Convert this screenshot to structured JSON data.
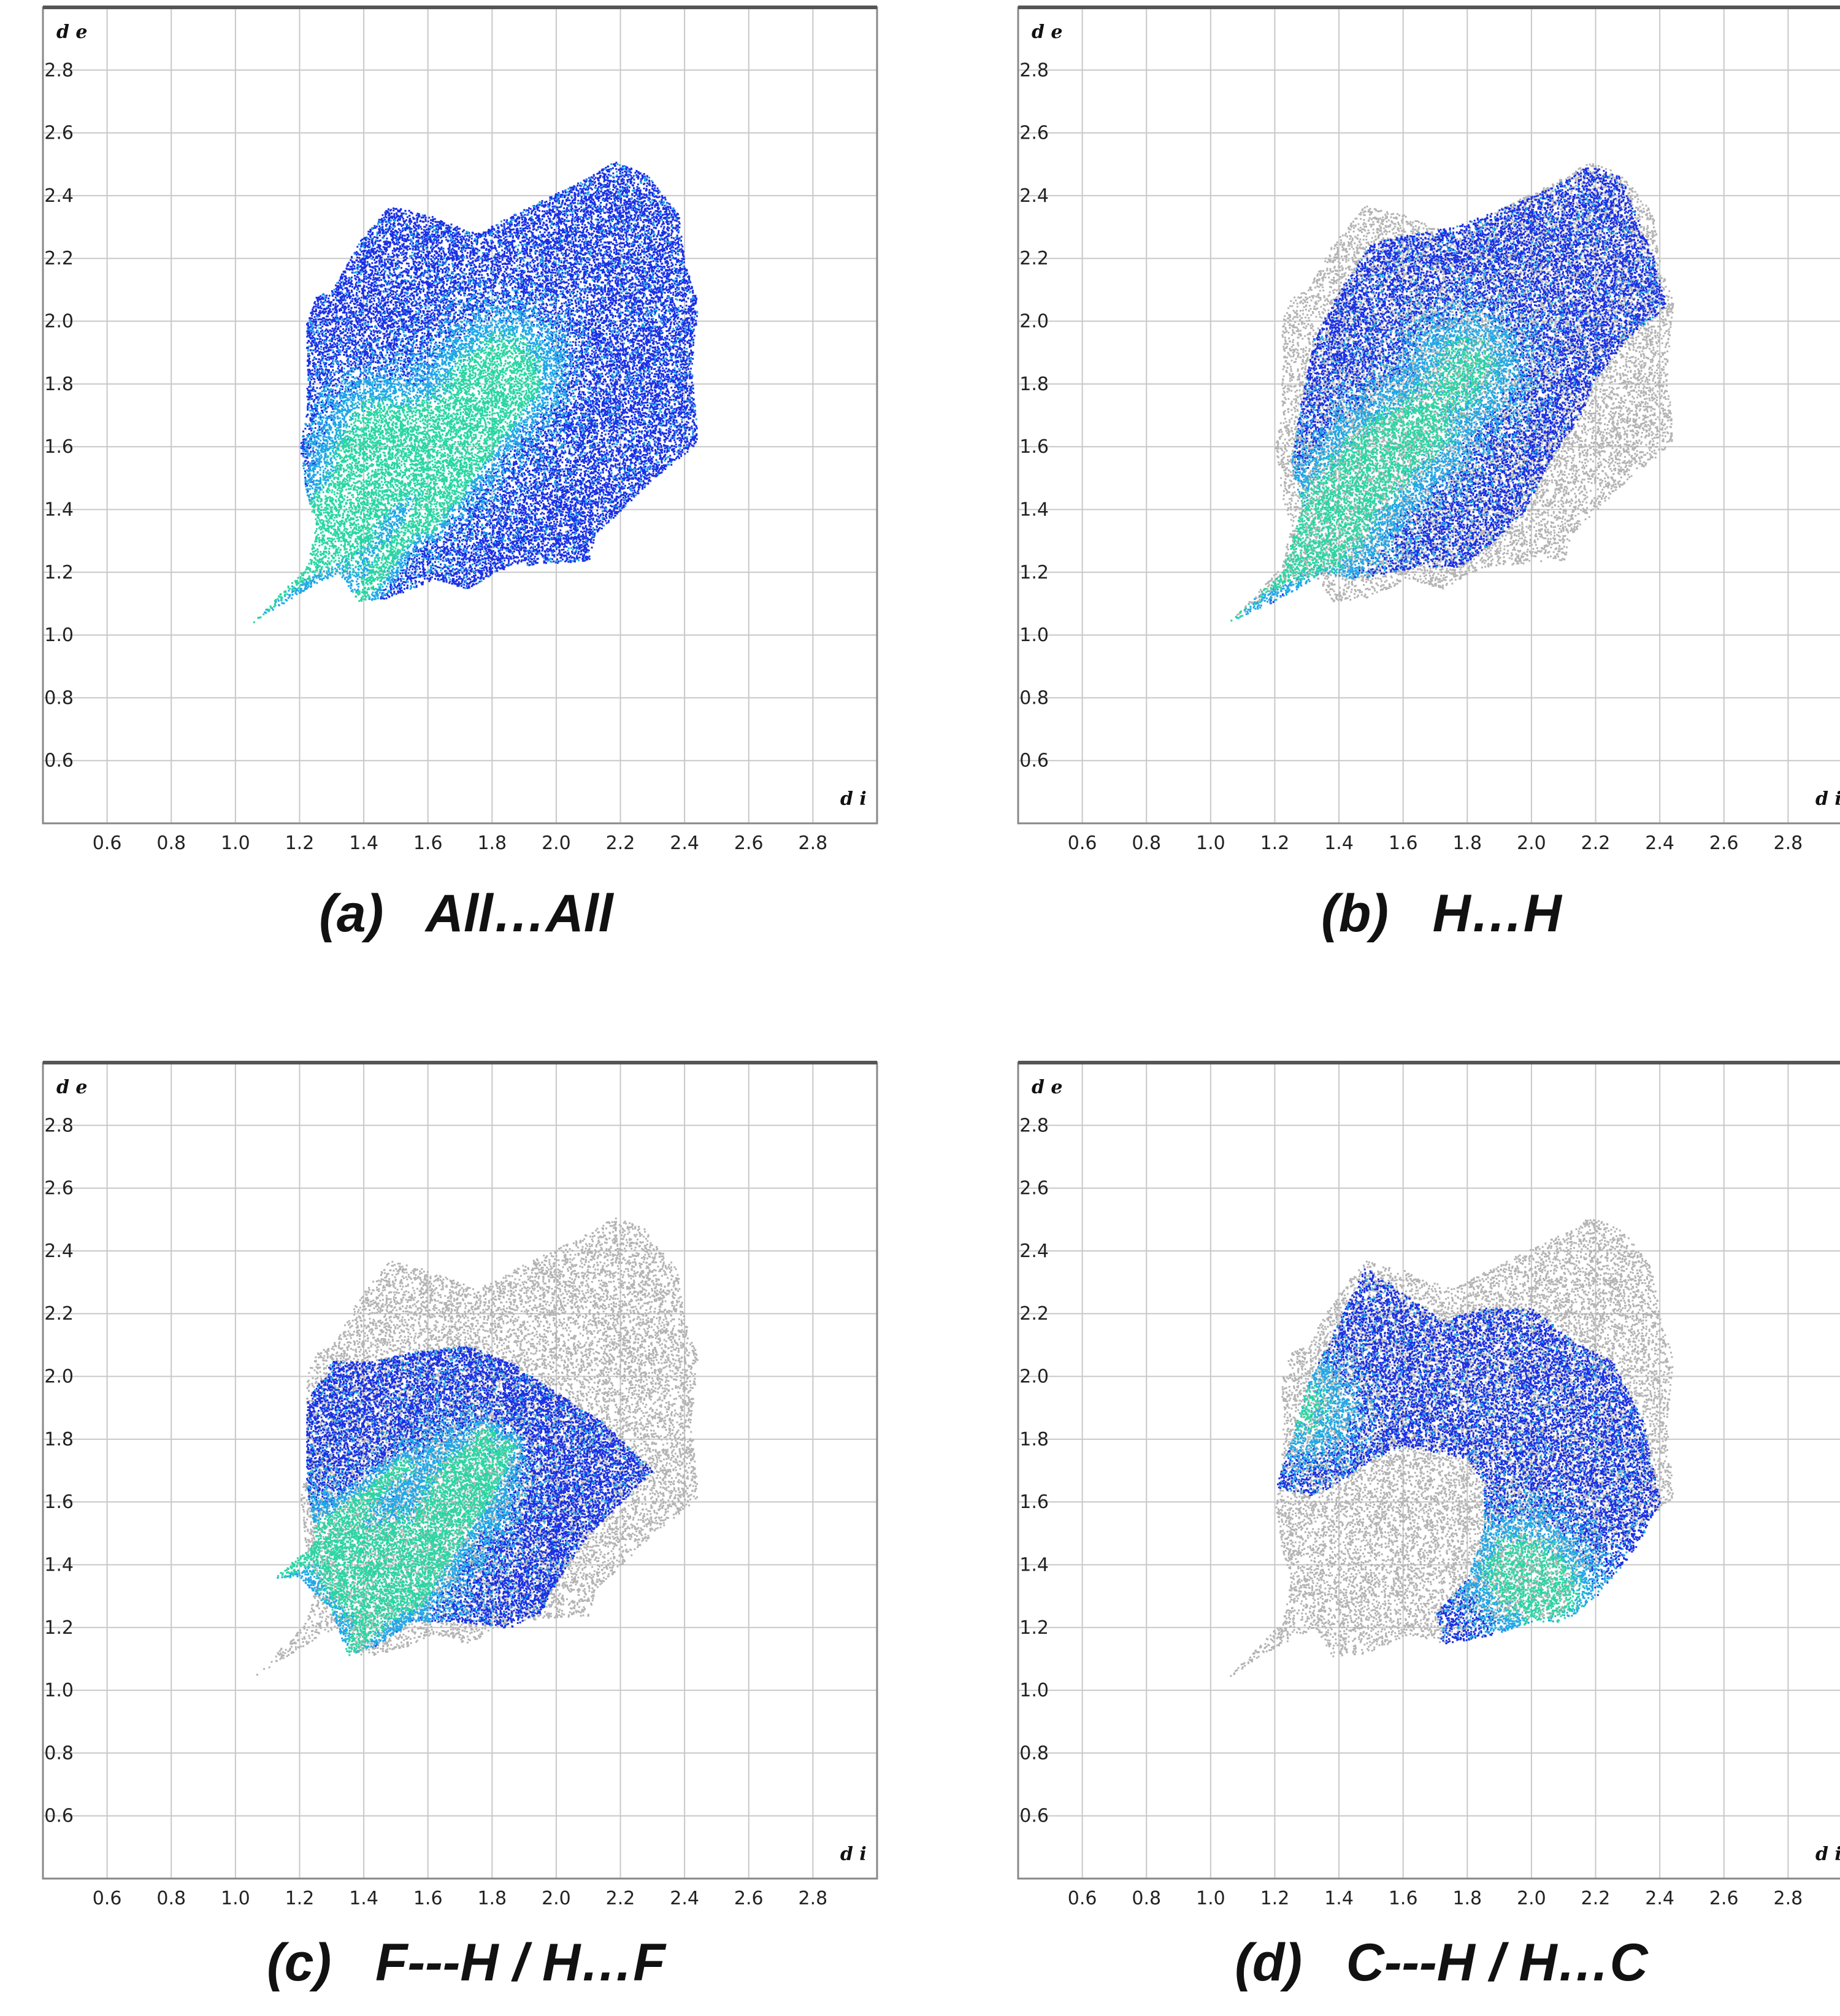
{
  "figure": {
    "colors": {
      "background": "#ffffff",
      "grid": "#c8c8c8",
      "frame": "#888888",
      "frame_top": "#555555",
      "blue": "#1a2fe6",
      "cyan": "#1fa7e8",
      "green": "#29d6a3",
      "grey": "#b3b3b3"
    }
  },
  "panels": [
    {
      "caption": "(a)   All…All",
      "ylabel": "d e",
      "xlabel": "d i",
      "highlight": "all"
    },
    {
      "caption": "(b)   H…H",
      "ylabel": "d e",
      "xlabel": "d i",
      "highlight": "HH"
    },
    {
      "caption": "(c)   F---H / H…F",
      "ylabel": "d e",
      "xlabel": "d i",
      "highlight": "FH"
    },
    {
      "caption": "(d)   C---H / H…C",
      "ylabel": "d e",
      "xlabel": "d i",
      "highlight": "CH"
    }
  ],
  "chart_data": [
    {
      "type": "scatter",
      "title": "(a)   All…All",
      "xlabel": "d i",
      "ylabel": "d e",
      "xlim": [
        0.4,
        3.0
      ],
      "ylim": [
        0.4,
        3.0
      ],
      "xticks": [
        "0.6",
        "0.8",
        "1.0",
        "1.2",
        "1.4",
        "1.6",
        "1.8",
        "2.0",
        "2.2",
        "2.4",
        "2.6",
        "2.8"
      ],
      "yticks": [
        "0.6",
        "0.8",
        "1.0",
        "1.2",
        "1.4",
        "1.6",
        "1.8",
        "2.0",
        "2.2",
        "2.4",
        "2.6",
        "2.8"
      ],
      "grid": true,
      "full_region_outline": [
        [
          1.05,
          1.04
        ],
        [
          1.22,
          1.22
        ],
        [
          1.25,
          1.35
        ],
        [
          1.22,
          1.45
        ],
        [
          1.2,
          1.6
        ],
        [
          1.22,
          1.72
        ],
        [
          1.22,
          2.0
        ],
        [
          1.25,
          2.08
        ],
        [
          1.3,
          2.1
        ],
        [
          1.38,
          2.25
        ],
        [
          1.48,
          2.37
        ],
        [
          1.6,
          2.34
        ],
        [
          1.75,
          2.28
        ],
        [
          1.88,
          2.35
        ],
        [
          1.98,
          2.4
        ],
        [
          2.08,
          2.45
        ],
        [
          2.18,
          2.51
        ],
        [
          2.28,
          2.47
        ],
        [
          2.38,
          2.34
        ],
        [
          2.4,
          2.18
        ],
        [
          2.44,
          2.06
        ],
        [
          2.42,
          1.85
        ],
        [
          2.44,
          1.62
        ],
        [
          2.4,
          1.58
        ],
        [
          2.3,
          1.5
        ],
        [
          2.2,
          1.4
        ],
        [
          2.12,
          1.32
        ],
        [
          2.1,
          1.24
        ],
        [
          1.85,
          1.22
        ],
        [
          1.72,
          1.15
        ],
        [
          1.62,
          1.18
        ],
        [
          1.48,
          1.12
        ],
        [
          1.38,
          1.11
        ],
        [
          1.32,
          1.2
        ],
        [
          1.22,
          1.15
        ],
        [
          1.05,
          1.04
        ]
      ],
      "highlight_region_outline": [
        [
          1.05,
          1.04
        ],
        [
          1.22,
          1.22
        ],
        [
          1.25,
          1.35
        ],
        [
          1.22,
          1.45
        ],
        [
          1.2,
          1.6
        ],
        [
          1.22,
          1.72
        ],
        [
          1.22,
          2.0
        ],
        [
          1.25,
          2.08
        ],
        [
          1.3,
          2.1
        ],
        [
          1.38,
          2.25
        ],
        [
          1.48,
          2.37
        ],
        [
          1.6,
          2.34
        ],
        [
          1.75,
          2.28
        ],
        [
          1.88,
          2.35
        ],
        [
          1.98,
          2.4
        ],
        [
          2.08,
          2.45
        ],
        [
          2.18,
          2.51
        ],
        [
          2.28,
          2.47
        ],
        [
          2.38,
          2.34
        ],
        [
          2.4,
          2.18
        ],
        [
          2.44,
          2.06
        ],
        [
          2.42,
          1.85
        ],
        [
          2.44,
          1.62
        ],
        [
          2.4,
          1.58
        ],
        [
          2.3,
          1.5
        ],
        [
          2.2,
          1.4
        ],
        [
          2.12,
          1.32
        ],
        [
          2.1,
          1.24
        ],
        [
          1.85,
          1.22
        ],
        [
          1.72,
          1.15
        ],
        [
          1.62,
          1.18
        ],
        [
          1.48,
          1.12
        ],
        [
          1.38,
          1.11
        ],
        [
          1.32,
          1.2
        ],
        [
          1.22,
          1.15
        ],
        [
          1.05,
          1.04
        ]
      ],
      "hotspots": [
        [
          1.45,
          1.66
        ],
        [
          1.75,
          1.76
        ],
        [
          1.62,
          1.56
        ],
        [
          1.85,
          1.86
        ],
        [
          1.4,
          1.5
        ],
        [
          1.32,
          1.3
        ]
      ],
      "spikes": [
        [
          [
            1.05,
            1.04
          ],
          [
            1.5,
            1.5
          ]
        ],
        [
          [
            1.2,
            1.35
          ],
          [
            1.6,
            1.7
          ]
        ],
        [
          [
            1.38,
            1.11
          ],
          [
            1.8,
            1.7
          ]
        ],
        [
          [
            1.6,
            1.35
          ],
          [
            1.9,
            1.8
          ]
        ]
      ]
    },
    {
      "type": "scatter",
      "title": "(b)   H…H",
      "xlabel": "d i",
      "ylabel": "d e",
      "xlim": [
        0.4,
        3.0
      ],
      "ylim": [
        0.4,
        3.0
      ],
      "xticks": [
        "0.6",
        "0.8",
        "1.0",
        "1.2",
        "1.4",
        "1.6",
        "1.8",
        "2.0",
        "2.2",
        "2.4",
        "2.6",
        "2.8"
      ],
      "yticks": [
        "0.6",
        "0.8",
        "1.0",
        "1.2",
        "1.4",
        "1.6",
        "1.8",
        "2.0",
        "2.2",
        "2.4",
        "2.6",
        "2.8"
      ],
      "grid": true,
      "full_region_outline": [
        [
          1.05,
          1.04
        ],
        [
          1.22,
          1.22
        ],
        [
          1.25,
          1.35
        ],
        [
          1.22,
          1.45
        ],
        [
          1.2,
          1.6
        ],
        [
          1.22,
          1.72
        ],
        [
          1.22,
          2.0
        ],
        [
          1.25,
          2.08
        ],
        [
          1.3,
          2.1
        ],
        [
          1.38,
          2.25
        ],
        [
          1.48,
          2.37
        ],
        [
          1.6,
          2.34
        ],
        [
          1.75,
          2.28
        ],
        [
          1.88,
          2.35
        ],
        [
          1.98,
          2.4
        ],
        [
          2.08,
          2.45
        ],
        [
          2.18,
          2.51
        ],
        [
          2.28,
          2.47
        ],
        [
          2.38,
          2.34
        ],
        [
          2.4,
          2.18
        ],
        [
          2.44,
          2.06
        ],
        [
          2.42,
          1.85
        ],
        [
          2.44,
          1.62
        ],
        [
          2.4,
          1.58
        ],
        [
          2.3,
          1.5
        ],
        [
          2.2,
          1.4
        ],
        [
          2.12,
          1.32
        ],
        [
          2.1,
          1.24
        ],
        [
          1.85,
          1.22
        ],
        [
          1.72,
          1.15
        ],
        [
          1.62,
          1.18
        ],
        [
          1.48,
          1.12
        ],
        [
          1.38,
          1.11
        ],
        [
          1.32,
          1.2
        ],
        [
          1.22,
          1.15
        ],
        [
          1.05,
          1.04
        ]
      ],
      "highlight_region_outline": [
        [
          1.05,
          1.04
        ],
        [
          1.22,
          1.2
        ],
        [
          1.28,
          1.4
        ],
        [
          1.25,
          1.55
        ],
        [
          1.28,
          1.75
        ],
        [
          1.32,
          1.95
        ],
        [
          1.4,
          2.1
        ],
        [
          1.5,
          2.25
        ],
        [
          1.62,
          2.28
        ],
        [
          1.75,
          2.3
        ],
        [
          1.88,
          2.35
        ],
        [
          2.0,
          2.4
        ],
        [
          2.1,
          2.45
        ],
        [
          2.18,
          2.5
        ],
        [
          2.28,
          2.46
        ],
        [
          2.34,
          2.3
        ],
        [
          2.38,
          2.2
        ],
        [
          2.42,
          2.05
        ],
        [
          2.3,
          1.95
        ],
        [
          2.2,
          1.82
        ],
        [
          2.15,
          1.7
        ],
        [
          2.05,
          1.55
        ],
        [
          1.98,
          1.4
        ],
        [
          1.88,
          1.3
        ],
        [
          1.78,
          1.22
        ],
        [
          1.65,
          1.22
        ],
        [
          1.55,
          1.2
        ],
        [
          1.45,
          1.18
        ],
        [
          1.35,
          1.2
        ],
        [
          1.22,
          1.12
        ],
        [
          1.05,
          1.04
        ]
      ],
      "hotspots": [
        [
          1.5,
          1.55
        ],
        [
          1.65,
          1.66
        ],
        [
          1.8,
          1.86
        ],
        [
          1.4,
          1.4
        ],
        [
          1.3,
          1.28
        ]
      ],
      "spikes": [
        [
          [
            1.05,
            1.04
          ],
          [
            1.55,
            1.55
          ]
        ],
        [
          [
            1.22,
            1.2
          ],
          [
            1.6,
            1.65
          ]
        ]
      ]
    },
    {
      "type": "scatter",
      "title": "(c)   F---H / H…F",
      "xlabel": "d i",
      "ylabel": "d e",
      "xlim": [
        0.4,
        3.0
      ],
      "ylim": [
        0.4,
        3.0
      ],
      "xticks": [
        "0.6",
        "0.8",
        "1.0",
        "1.2",
        "1.4",
        "1.6",
        "1.8",
        "2.0",
        "2.2",
        "2.4",
        "2.6",
        "2.8"
      ],
      "yticks": [
        "0.6",
        "0.8",
        "1.0",
        "1.2",
        "1.4",
        "1.6",
        "1.8",
        "2.0",
        "2.2",
        "2.4",
        "2.6",
        "2.8"
      ],
      "grid": true,
      "full_region_outline": [
        [
          1.05,
          1.04
        ],
        [
          1.22,
          1.22
        ],
        [
          1.25,
          1.35
        ],
        [
          1.22,
          1.45
        ],
        [
          1.2,
          1.6
        ],
        [
          1.22,
          1.72
        ],
        [
          1.22,
          2.0
        ],
        [
          1.25,
          2.08
        ],
        [
          1.3,
          2.1
        ],
        [
          1.38,
          2.25
        ],
        [
          1.48,
          2.37
        ],
        [
          1.6,
          2.34
        ],
        [
          1.75,
          2.28
        ],
        [
          1.88,
          2.35
        ],
        [
          1.98,
          2.4
        ],
        [
          2.08,
          2.45
        ],
        [
          2.18,
          2.51
        ],
        [
          2.28,
          2.47
        ],
        [
          2.38,
          2.34
        ],
        [
          2.4,
          2.18
        ],
        [
          2.44,
          2.06
        ],
        [
          2.42,
          1.85
        ],
        [
          2.44,
          1.62
        ],
        [
          2.4,
          1.58
        ],
        [
          2.3,
          1.5
        ],
        [
          2.2,
          1.4
        ],
        [
          2.12,
          1.32
        ],
        [
          2.1,
          1.24
        ],
        [
          1.85,
          1.22
        ],
        [
          1.72,
          1.15
        ],
        [
          1.62,
          1.18
        ],
        [
          1.48,
          1.12
        ],
        [
          1.38,
          1.11
        ],
        [
          1.32,
          1.2
        ],
        [
          1.22,
          1.15
        ],
        [
          1.05,
          1.04
        ]
      ],
      "highlight_region_outline": [
        [
          1.12,
          1.36
        ],
        [
          1.25,
          1.48
        ],
        [
          1.22,
          1.65
        ],
        [
          1.22,
          1.92
        ],
        [
          1.3,
          2.05
        ],
        [
          1.42,
          2.05
        ],
        [
          1.55,
          2.08
        ],
        [
          1.72,
          2.1
        ],
        [
          1.85,
          2.05
        ],
        [
          2.0,
          1.95
        ],
        [
          2.15,
          1.85
        ],
        [
          2.3,
          1.7
        ],
        [
          2.2,
          1.6
        ],
        [
          2.1,
          1.5
        ],
        [
          2.0,
          1.35
        ],
        [
          1.95,
          1.25
        ],
        [
          1.85,
          1.2
        ],
        [
          1.7,
          1.22
        ],
        [
          1.55,
          1.22
        ],
        [
          1.45,
          1.15
        ],
        [
          1.35,
          1.11
        ],
        [
          1.3,
          1.25
        ],
        [
          1.2,
          1.36
        ],
        [
          1.12,
          1.36
        ]
      ],
      "hotspots": [
        [
          1.32,
          1.45
        ],
        [
          1.55,
          1.45
        ],
        [
          1.7,
          1.66
        ],
        [
          1.42,
          1.3
        ]
      ],
      "spikes": [
        [
          [
            1.12,
            1.36
          ],
          [
            1.52,
            1.72
          ]
        ],
        [
          [
            1.35,
            1.11
          ],
          [
            1.78,
            1.82
          ]
        ],
        [
          [
            1.55,
            1.3
          ],
          [
            1.85,
            1.78
          ]
        ]
      ]
    },
    {
      "type": "scatter",
      "title": "(d)   C---H / H…C",
      "xlabel": "d i",
      "ylabel": "d e",
      "xlim": [
        0.4,
        3.0
      ],
      "ylim": [
        0.4,
        3.0
      ],
      "xticks": [
        "0.6",
        "0.8",
        "1.0",
        "1.2",
        "1.4",
        "1.6",
        "1.8",
        "2.0",
        "2.2",
        "2.4",
        "2.6",
        "2.8"
      ],
      "yticks": [
        "0.6",
        "0.8",
        "1.0",
        "1.2",
        "1.4",
        "1.6",
        "1.8",
        "2.0",
        "2.2",
        "2.4",
        "2.6",
        "2.8"
      ],
      "grid": true,
      "full_region_outline": [
        [
          1.05,
          1.04
        ],
        [
          1.22,
          1.22
        ],
        [
          1.25,
          1.35
        ],
        [
          1.22,
          1.45
        ],
        [
          1.2,
          1.6
        ],
        [
          1.22,
          1.72
        ],
        [
          1.22,
          2.0
        ],
        [
          1.25,
          2.08
        ],
        [
          1.3,
          2.1
        ],
        [
          1.38,
          2.25
        ],
        [
          1.48,
          2.37
        ],
        [
          1.6,
          2.34
        ],
        [
          1.75,
          2.28
        ],
        [
          1.88,
          2.35
        ],
        [
          1.98,
          2.4
        ],
        [
          2.08,
          2.45
        ],
        [
          2.18,
          2.51
        ],
        [
          2.28,
          2.47
        ],
        [
          2.38,
          2.34
        ],
        [
          2.4,
          2.18
        ],
        [
          2.44,
          2.06
        ],
        [
          2.42,
          1.85
        ],
        [
          2.44,
          1.62
        ],
        [
          2.4,
          1.58
        ],
        [
          2.3,
          1.5
        ],
        [
          2.2,
          1.4
        ],
        [
          2.12,
          1.32
        ],
        [
          2.1,
          1.24
        ],
        [
          1.85,
          1.22
        ],
        [
          1.72,
          1.15
        ],
        [
          1.62,
          1.18
        ],
        [
          1.48,
          1.12
        ],
        [
          1.38,
          1.11
        ],
        [
          1.32,
          1.2
        ],
        [
          1.22,
          1.15
        ],
        [
          1.05,
          1.04
        ]
      ],
      "highlight_region_outline": [
        [
          1.2,
          1.65
        ],
        [
          1.25,
          1.8
        ],
        [
          1.3,
          1.98
        ],
        [
          1.4,
          2.18
        ],
        [
          1.48,
          2.35
        ],
        [
          1.58,
          2.28
        ],
        [
          1.72,
          2.18
        ],
        [
          1.85,
          2.22
        ],
        [
          2.0,
          2.22
        ],
        [
          2.12,
          2.12
        ],
        [
          2.25,
          2.05
        ],
        [
          2.35,
          1.85
        ],
        [
          2.4,
          1.6
        ],
        [
          2.32,
          1.45
        ],
        [
          2.2,
          1.3
        ],
        [
          2.1,
          1.22
        ],
        [
          2.0,
          1.22
        ],
        [
          1.85,
          1.17
        ],
        [
          1.72,
          1.15
        ],
        [
          1.7,
          1.25
        ],
        [
          1.8,
          1.36
        ],
        [
          1.85,
          1.52
        ],
        [
          1.85,
          1.66
        ],
        [
          1.8,
          1.74
        ],
        [
          1.7,
          1.76
        ],
        [
          1.6,
          1.78
        ],
        [
          1.5,
          1.74
        ],
        [
          1.42,
          1.68
        ],
        [
          1.32,
          1.62
        ],
        [
          1.2,
          1.65
        ]
      ],
      "hotspots": [
        [
          1.28,
          1.9
        ],
        [
          1.95,
          1.4
        ],
        [
          2.05,
          1.3
        ]
      ],
      "spikes": []
    }
  ]
}
